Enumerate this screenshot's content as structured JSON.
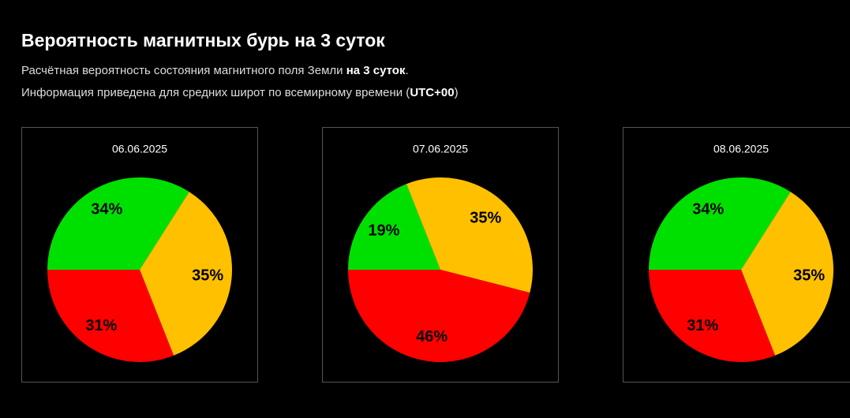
{
  "header": {
    "title": "Вероятность магнитных бурь на 3 суток",
    "line1": [
      "Расчётная вероятность состояния магнитного поля Земли ",
      "на 3 суток",
      "."
    ],
    "line2": [
      "Информация приведена для средних широт по всемирному времени (",
      "UTC+00",
      ")"
    ]
  },
  "chart_data": [
    {
      "type": "pie",
      "title": "06.06.2025",
      "values": [
        34,
        35,
        31
      ],
      "value_labels": [
        "34%",
        "35%",
        "31%"
      ],
      "colors": [
        "#00e000",
        "#ffc000",
        "#ff0000"
      ]
    },
    {
      "type": "pie",
      "title": "07.06.2025",
      "values": [
        19,
        35,
        46
      ],
      "value_labels": [
        "19%",
        "35%",
        "46%"
      ],
      "colors": [
        "#00e000",
        "#ffc000",
        "#ff0000"
      ]
    },
    {
      "type": "pie",
      "title": "08.06.2025",
      "values": [
        34,
        35,
        31
      ],
      "value_labels": [
        "34%",
        "35%",
        "31%"
      ],
      "colors": [
        "#00e000",
        "#ffc000",
        "#ff0000"
      ]
    }
  ]
}
